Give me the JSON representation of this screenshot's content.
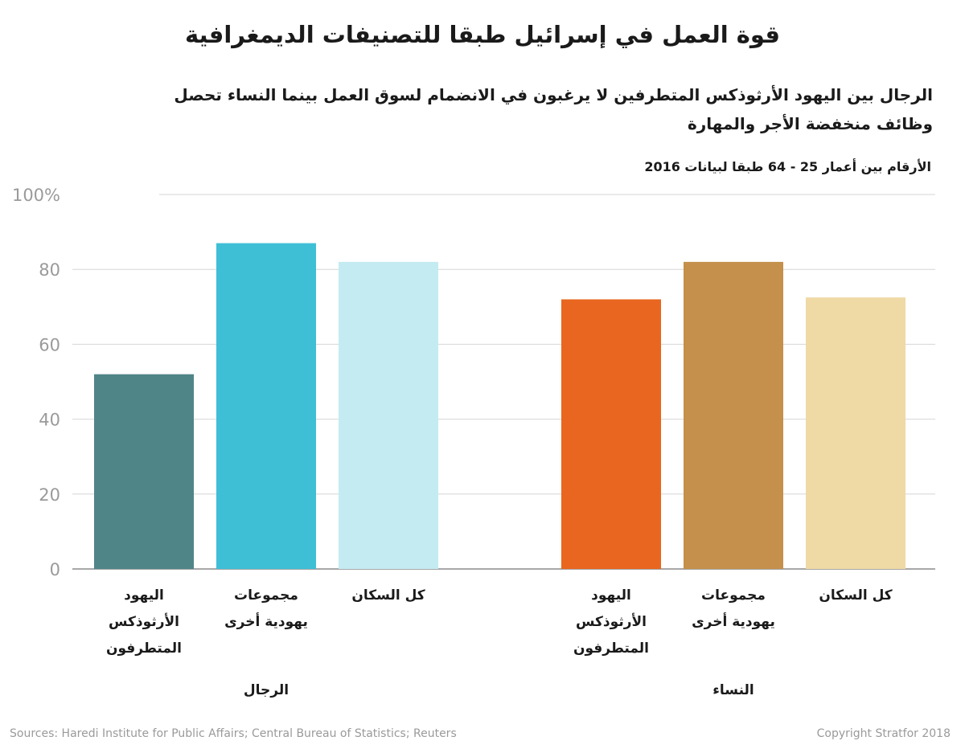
{
  "title": "قوة العمل في إسرائيل طبقا للتصنيفات الديمغرافية",
  "subtitle": "الرجال بين اليهود الأرثوذكس المتطرفين لا يرغبون في الانضمام لسوق العمل بينما النساء تحصل وظائف منخفضة الأجر والمهارة",
  "note": "الأرقام بين أعمار 25 - 64 طبقا لبيانات 2016",
  "footer": {
    "sources": "Sources: Haredi Institute for Public Affairs; Central Bureau of Statistics; Reuters",
    "copyright": "Copyright Stratfor 2018"
  },
  "chart_data": {
    "type": "bar",
    "ylim": [
      0,
      100
    ],
    "yticks": [
      0,
      20,
      40,
      60,
      80,
      100
    ],
    "ytick_labels": [
      "0",
      "20",
      "40",
      "60",
      "80",
      "100%"
    ],
    "grid": true,
    "groups": [
      {
        "name": "الرجال",
        "bars": [
          {
            "label": [
              "اليهود",
              "الأرثوذكس",
              "المتطرفون"
            ],
            "value": 52,
            "color": "#4f8587"
          },
          {
            "label": [
              "مجموعات",
              "يهودية أخرى"
            ],
            "value": 87,
            "color": "#3ebfd6"
          },
          {
            "label": [
              "كل السكان"
            ],
            "value": 82,
            "color": "#c4ebf2"
          }
        ]
      },
      {
        "name": "النساء",
        "bars": [
          {
            "label": [
              "اليهود",
              "الأرثوذكس",
              "المتطرفون"
            ],
            "value": 72,
            "color": "#e8661f"
          },
          {
            "label": [
              "مجموعات",
              "يهودية أخرى"
            ],
            "value": 82,
            "color": "#c4904b"
          },
          {
            "label": [
              "كل السكان"
            ],
            "value": 72.5,
            "color": "#efd9a5"
          }
        ]
      }
    ]
  }
}
